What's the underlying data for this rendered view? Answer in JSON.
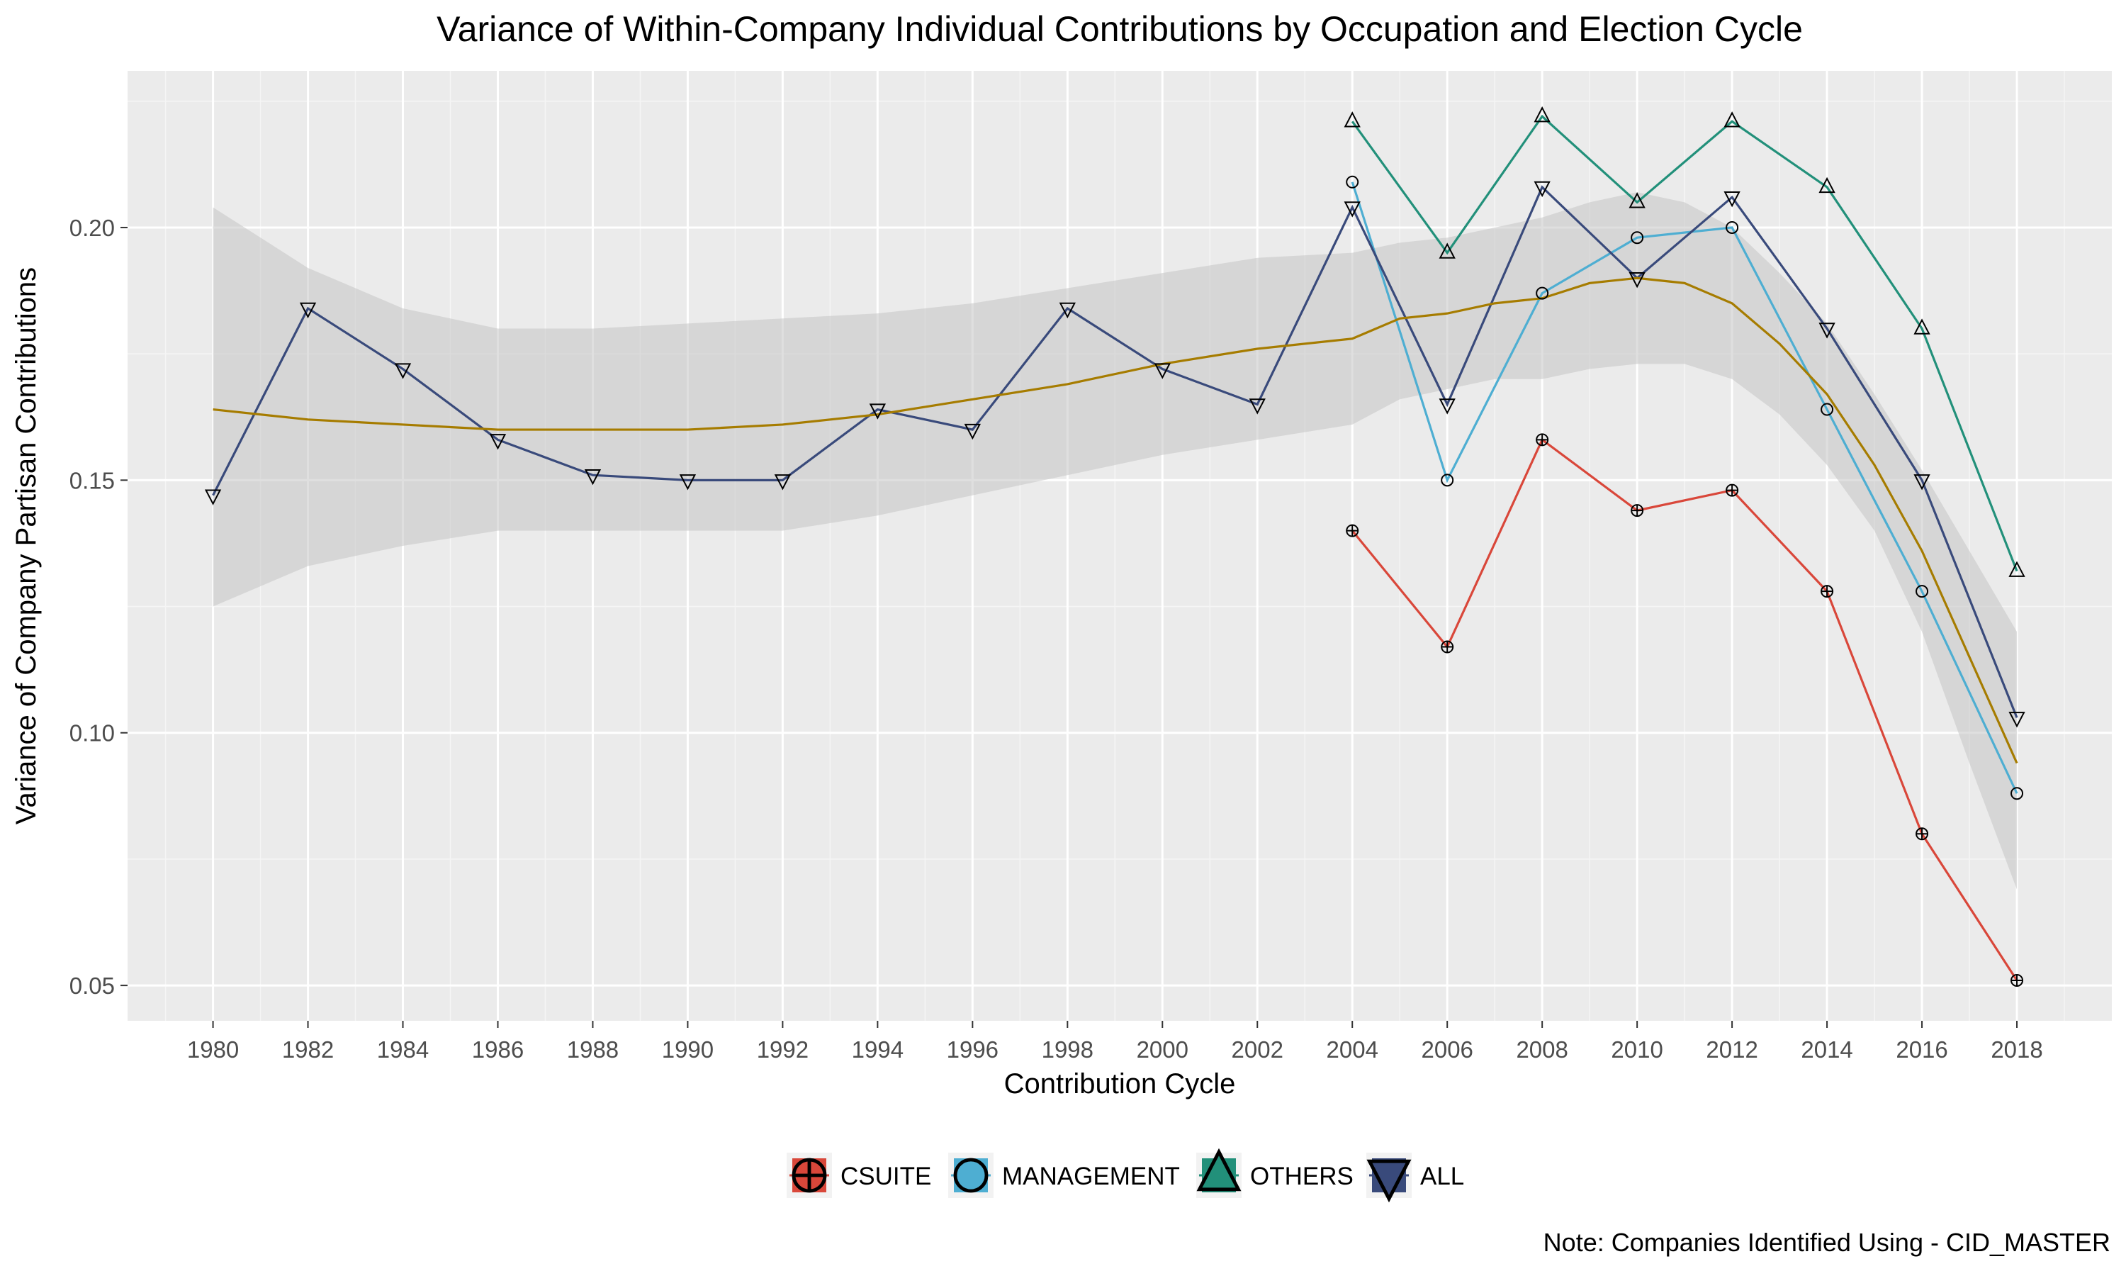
{
  "chart_data": {
    "type": "line",
    "title": "Variance of Within-Company Individual Contributions by Occupation and Election Cycle",
    "xlabel": "Contribution Cycle",
    "ylabel": "Variance of Company Partisan Contributions",
    "note": "Note: Companies Identified Using - CID_MASTER",
    "xlim": [
      1978.2,
      2020.0
    ],
    "ylim": [
      0.043,
      0.231
    ],
    "x_ticks": [
      1980,
      1982,
      1984,
      1986,
      1988,
      1990,
      1992,
      1994,
      1996,
      1998,
      2000,
      2002,
      2004,
      2006,
      2008,
      2010,
      2012,
      2014,
      2016,
      2018
    ],
    "y_ticks": [
      0.05,
      0.1,
      0.15,
      0.2
    ],
    "y_tick_labels": [
      "0.05",
      "0.10",
      "0.15",
      "0.20"
    ],
    "grid": true,
    "legend_position": "bottom",
    "series": [
      {
        "name": "CSUITE",
        "color": "#d9473a",
        "marker": "circle-plus",
        "x": [
          2004,
          2006,
          2008,
          2010,
          2012,
          2014,
          2016,
          2018
        ],
        "values": [
          0.14,
          0.117,
          0.158,
          0.144,
          0.148,
          0.128,
          0.08,
          0.051
        ]
      },
      {
        "name": "MANAGEMENT",
        "color": "#4eaed2",
        "marker": "circle",
        "x": [
          2004,
          2006,
          2008,
          2010,
          2012,
          2014,
          2016,
          2018
        ],
        "values": [
          0.209,
          0.15,
          0.187,
          0.198,
          0.2,
          0.164,
          0.128,
          0.088
        ]
      },
      {
        "name": "OTHERS",
        "color": "#22907a",
        "marker": "triangle-up",
        "x": [
          2004,
          2006,
          2008,
          2010,
          2012,
          2014,
          2016,
          2018
        ],
        "values": [
          0.221,
          0.195,
          0.222,
          0.205,
          0.221,
          0.208,
          0.18,
          0.132
        ]
      },
      {
        "name": "ALL",
        "color": "#394a7b",
        "marker": "triangle-down",
        "x": [
          1980,
          1982,
          1984,
          1986,
          1988,
          1990,
          1992,
          1994,
          1996,
          1998,
          2000,
          2002,
          2004,
          2006,
          2008,
          2010,
          2012,
          2014,
          2016,
          2018
        ],
        "values": [
          0.147,
          0.184,
          0.172,
          0.158,
          0.151,
          0.15,
          0.15,
          0.164,
          0.16,
          0.184,
          0.172,
          0.165,
          0.204,
          0.165,
          0.208,
          0.19,
          0.206,
          0.18,
          0.15,
          0.103
        ]
      }
    ],
    "smooth": {
      "color": "#a67c00",
      "band_color": "#cfcfcf",
      "x": [
        1980,
        1982,
        1984,
        1986,
        1988,
        1990,
        1992,
        1994,
        1996,
        1998,
        2000,
        2002,
        2004,
        2005,
        2006,
        2007,
        2008,
        2009,
        2010,
        2011,
        2012,
        2013,
        2014,
        2015,
        2016,
        2017,
        2018
      ],
      "y": [
        0.164,
        0.162,
        0.161,
        0.16,
        0.16,
        0.16,
        0.161,
        0.163,
        0.166,
        0.169,
        0.173,
        0.176,
        0.178,
        0.182,
        0.183,
        0.185,
        0.186,
        0.189,
        0.19,
        0.189,
        0.185,
        0.177,
        0.167,
        0.153,
        0.136,
        0.115,
        0.094
      ],
      "upper": [
        0.204,
        0.192,
        0.184,
        0.18,
        0.18,
        0.181,
        0.182,
        0.183,
        0.185,
        0.188,
        0.191,
        0.194,
        0.195,
        0.197,
        0.198,
        0.2,
        0.202,
        0.205,
        0.207,
        0.205,
        0.2,
        0.191,
        0.181,
        0.167,
        0.152,
        0.136,
        0.12
      ],
      "lower": [
        0.125,
        0.133,
        0.137,
        0.14,
        0.14,
        0.14,
        0.14,
        0.143,
        0.147,
        0.151,
        0.155,
        0.158,
        0.161,
        0.166,
        0.168,
        0.17,
        0.17,
        0.172,
        0.173,
        0.173,
        0.17,
        0.163,
        0.153,
        0.14,
        0.12,
        0.094,
        0.069
      ]
    }
  }
}
